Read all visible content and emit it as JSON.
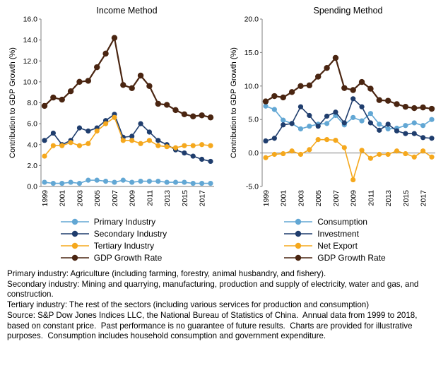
{
  "page": {
    "background": "#ffffff"
  },
  "colors": {
    "light_blue": "#62a7d4",
    "dark_blue": "#1f3d6d",
    "orange": "#f5a81d",
    "brown": "#4a2511",
    "axis": "#7f7f7f"
  },
  "chart_data": [
    {
      "type": "line",
      "title": "Income Method",
      "ylabel": "Contribution to GDP Growth (%)",
      "ylim": [
        0,
        16
      ],
      "ytick_step": 2,
      "grid": false,
      "legend_position": "bottom",
      "xticks_shown_every": 2,
      "x": [
        1999,
        2000,
        2001,
        2002,
        2003,
        2004,
        2005,
        2006,
        2007,
        2008,
        2009,
        2010,
        2011,
        2012,
        2013,
        2014,
        2015,
        2016,
        2017,
        2018
      ],
      "series": [
        {
          "name": "Primary Industry",
          "color": "#62a7d4",
          "line_width": 1.6,
          "marker_size": 3.6,
          "values": [
            0.4,
            0.3,
            0.3,
            0.4,
            0.3,
            0.6,
            0.6,
            0.5,
            0.4,
            0.6,
            0.4,
            0.5,
            0.5,
            0.5,
            0.4,
            0.4,
            0.4,
            0.3,
            0.3,
            0.3
          ]
        },
        {
          "name": "Secondary Industry",
          "color": "#1f3d6d",
          "line_width": 1.6,
          "marker_size": 3.6,
          "values": [
            4.4,
            5.1,
            4.0,
            4.4,
            5.6,
            5.3,
            5.6,
            6.3,
            6.9,
            4.7,
            4.8,
            6.0,
            5.2,
            4.4,
            4.0,
            3.5,
            3.2,
            2.9,
            2.6,
            2.4
          ]
        },
        {
          "name": "Tertiary Industry",
          "color": "#f5a81d",
          "line_width": 1.6,
          "marker_size": 3.6,
          "values": [
            2.9,
            3.9,
            3.9,
            4.2,
            3.9,
            4.1,
            5.3,
            6.0,
            6.6,
            4.4,
            4.4,
            4.1,
            4.4,
            3.9,
            3.8,
            3.7,
            3.9,
            3.9,
            4.0,
            3.9
          ]
        },
        {
          "name": "GDP Growth Rate",
          "color": "#4a2511",
          "line_width": 2.2,
          "marker_size": 4.2,
          "values": [
            7.7,
            8.5,
            8.3,
            9.1,
            10.0,
            10.1,
            11.4,
            12.7,
            14.2,
            9.7,
            9.4,
            10.6,
            9.6,
            7.9,
            7.8,
            7.3,
            6.9,
            6.7,
            6.8,
            6.6
          ]
        }
      ]
    },
    {
      "type": "line",
      "title": "Spending Method",
      "ylabel": "Contribution to GDP Growth (%)",
      "ylim": [
        -5,
        20
      ],
      "ytick_step": 5,
      "grid": false,
      "legend_position": "bottom",
      "xticks_shown_every": 2,
      "x": [
        1999,
        2000,
        2001,
        2002,
        2003,
        2004,
        2005,
        2006,
        2007,
        2008,
        2009,
        2010,
        2011,
        2012,
        2013,
        2014,
        2015,
        2016,
        2017,
        2018
      ],
      "series": [
        {
          "name": "Consumption",
          "color": "#62a7d4",
          "line_width": 1.6,
          "marker_size": 3.6,
          "values": [
            7.0,
            6.5,
            4.9,
            4.4,
            3.6,
            4.0,
            4.3,
            4.4,
            5.6,
            4.2,
            5.3,
            4.8,
            5.9,
            4.3,
            3.6,
            3.7,
            4.1,
            4.5,
            4.1,
            5.0
          ]
        },
        {
          "name": "Investment",
          "color": "#1f3d6d",
          "line_width": 1.6,
          "marker_size": 3.6,
          "values": [
            1.8,
            2.2,
            4.2,
            4.4,
            6.9,
            5.6,
            4.0,
            5.5,
            6.1,
            4.5,
            8.1,
            6.9,
            4.5,
            3.4,
            4.3,
            3.3,
            2.9,
            2.9,
            2.3,
            2.2
          ]
        },
        {
          "name": "Net Export",
          "color": "#f5a81d",
          "line_width": 1.6,
          "marker_size": 3.6,
          "values": [
            -0.7,
            -0.2,
            -0.1,
            0.3,
            -0.2,
            0.5,
            2.0,
            2.0,
            1.9,
            0.8,
            -4.0,
            0.4,
            -0.8,
            -0.2,
            -0.2,
            0.3,
            -0.1,
            -0.6,
            0.3,
            -0.6
          ]
        },
        {
          "name": "GDP Growth Rate",
          "color": "#4a2511",
          "line_width": 2.2,
          "marker_size": 4.2,
          "values": [
            7.7,
            8.5,
            8.3,
            9.1,
            10.0,
            10.1,
            11.4,
            12.7,
            14.2,
            9.7,
            9.4,
            10.6,
            9.6,
            7.9,
            7.8,
            7.3,
            6.9,
            6.7,
            6.8,
            6.6
          ]
        }
      ]
    }
  ],
  "footnotes": [
    "Primary industry: Agriculture (including farming, forestry, animal husbandry, and fishery).",
    "Secondary industry: Mining and quarrying, manufacturing, production and supply of electricity, water and gas, and construction.",
    "Tertiary industry: The rest of the sectors (including various services for production and consumption)",
    "Source: S&P Dow Jones Indices LLC, the National Bureau of Statistics of China.  Annual data from 1999 to 2018, based on constant price.  Past performance is no guarantee of future results.  Charts are provided for illustrative purposes.  Consumption includes household consumption and government expenditure."
  ]
}
